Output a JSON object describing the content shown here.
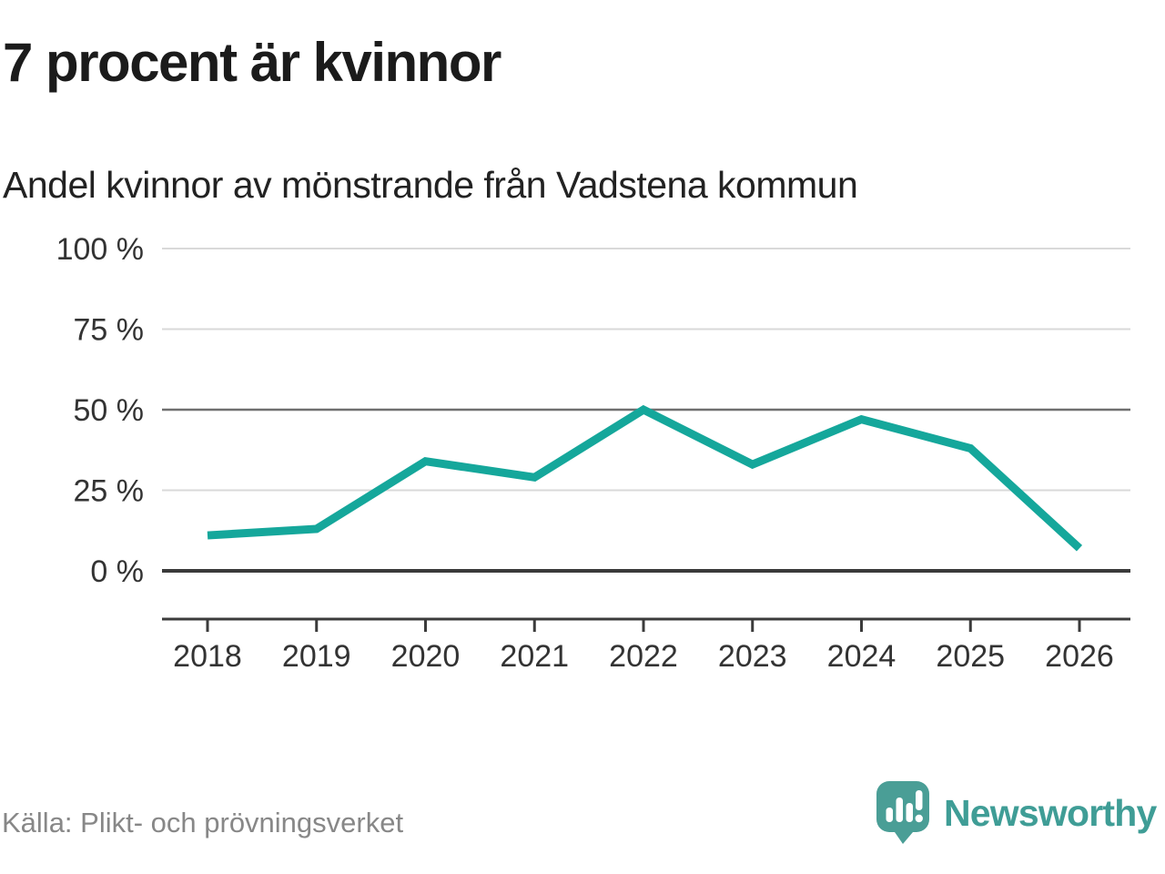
{
  "header": {
    "title": "7 procent är kvinnor",
    "subtitle": "Andel kvinnor av mönstrande från Vadstena kommun"
  },
  "chart_data": {
    "type": "line",
    "title": "7 procent är kvinnor",
    "subtitle": "Andel kvinnor av mönstrande från Vadstena kommun",
    "categories": [
      "2018",
      "2019",
      "2020",
      "2021",
      "2022",
      "2023",
      "2024",
      "2025",
      "2026"
    ],
    "series": [
      {
        "name": "Andel kvinnor av mönstrande",
        "values": [
          11,
          13,
          34,
          29,
          50,
          33,
          47,
          38,
          7
        ]
      }
    ],
    "unit": "%",
    "ylim": [
      0,
      100
    ],
    "yticks": [
      {
        "value": 100,
        "label": "100 %"
      },
      {
        "value": 75,
        "label": "75 %"
      },
      {
        "value": 50,
        "label": "50 %"
      },
      {
        "value": 25,
        "label": "25 %"
      },
      {
        "value": 0,
        "label": "0 %"
      }
    ],
    "grid": true,
    "emphasized_gridlines": [
      50,
      0
    ],
    "legend_position": "none",
    "xlabel": "",
    "ylabel": ""
  },
  "footer": {
    "source": "Källa: Plikt- och prövningsverket",
    "brand": "Newsworthy"
  },
  "colors": {
    "line": "#15a79b",
    "brand": "#3f9d96",
    "logo_bubble": "#4a9e96",
    "title_text": "#1b1b1b",
    "subtitle_text": "#222222",
    "axis_text": "#333333",
    "grid_light": "#d9d9d9",
    "grid_mid": "#6f6f6f",
    "axis_dark": "#3b3b3b",
    "source_text": "#878787"
  }
}
